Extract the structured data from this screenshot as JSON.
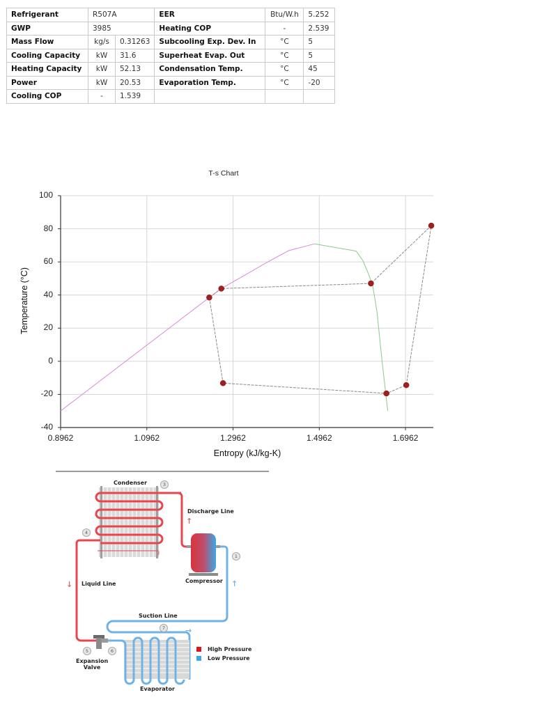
{
  "table": {
    "left_rows": [
      {
        "label": "Refrigerant",
        "unit": "",
        "value": "R507A",
        "span": true
      },
      {
        "label": "GWP",
        "unit": "",
        "value": "3985",
        "span": true
      },
      {
        "label": "Mass Flow",
        "unit": "kg/s",
        "value": "0.31263"
      },
      {
        "label": "Cooling Capacity",
        "unit": "kW",
        "value": "31.6"
      },
      {
        "label": "Heating Capacity",
        "unit": "kW",
        "value": "52.13"
      },
      {
        "label": "Power",
        "unit": "kW",
        "value": "20.53"
      },
      {
        "label": "Cooling COP",
        "unit": "-",
        "value": "1.539"
      }
    ],
    "right_rows": [
      {
        "label": "EER",
        "unit": "Btu/W.h",
        "value": "5.252"
      },
      {
        "label": "Heating COP",
        "unit": "-",
        "value": "2.539"
      },
      {
        "label": "Subcooling Exp. Dev. In",
        "unit": "°C",
        "value": "5"
      },
      {
        "label": "Superheat Evap. Out",
        "unit": "°C",
        "value": "5"
      },
      {
        "label": "Condensation Temp.",
        "unit": "°C",
        "value": "45"
      },
      {
        "label": "Evaporation Temp.",
        "unit": "°C",
        "value": "-20"
      },
      {
        "label": "",
        "unit": "",
        "value": ""
      }
    ]
  },
  "chart_data": {
    "type": "line",
    "title": "T-s Chart",
    "xlabel": "Entropy (kJ/kg-K)",
    "ylabel": "Temperature (°C)",
    "xlim": [
      0.8962,
      1.7607
    ],
    "ylim": [
      -40,
      100
    ],
    "xticks": [
      "0.8962",
      "1.0962",
      "1.2962",
      "1.4962",
      "1.6962"
    ],
    "yticks": [
      "100",
      "80",
      "60",
      "40",
      "20",
      "0",
      "-20",
      "-40"
    ],
    "grid": true,
    "legend": "none",
    "series": [
      {
        "name": "Saturated liquid line",
        "color": "#d98ad9",
        "x": [
          0.8962,
          1.241,
          1.269,
          1.33,
          1.38,
          1.425,
          1.485
        ],
        "y": [
          -30.0,
          38.5,
          43.9,
          53.0,
          60.5,
          66.8,
          70.9
        ]
      },
      {
        "name": "Saturated vapor line",
        "color": "#8cc98c",
        "x": [
          1.485,
          1.582,
          1.598,
          1.61,
          1.62,
          1.63,
          1.642,
          1.655
        ],
        "y": [
          70.9,
          66.5,
          60.5,
          53.0,
          46.0,
          30.0,
          0.0,
          -30.0
        ]
      },
      {
        "name": "Refrigeration cycle",
        "color": "#8a8a8a",
        "markers": true,
        "marker_color": "#a31f1f",
        "x": [
          1.241,
          1.273,
          1.652,
          1.698,
          1.756,
          1.616,
          1.269,
          1.241
        ],
        "y": [
          38.5,
          -13.2,
          -19.4,
          -14.4,
          81.9,
          47.0,
          43.9,
          38.5
        ]
      }
    ],
    "points": [
      {
        "s": 1.241,
        "T": 38.5
      },
      {
        "s": 1.269,
        "T": 43.9
      },
      {
        "s": 1.273,
        "T": -13.2
      },
      {
        "s": 1.652,
        "T": -19.4
      },
      {
        "s": 1.698,
        "T": -14.4
      },
      {
        "s": 1.756,
        "T": 81.9
      },
      {
        "s": 1.616,
        "T": 47.0
      }
    ]
  },
  "diagram": {
    "labels": {
      "condenser": "Condenser",
      "discharge_line": "Discharge Line",
      "compressor": "Compressor",
      "liquid_line": "Liquid Line",
      "suction_line": "Suction Line",
      "expansion_valve_1": "Expansion",
      "expansion_valve_2": "Valve",
      "evaporator": "Evaporator"
    },
    "badges": {
      "b1": "1",
      "b3": "3",
      "b4": "4",
      "b5": "5",
      "b6": "6",
      "b7": "7"
    },
    "legend": [
      {
        "label": "High Pressure",
        "color": "#e0141e"
      },
      {
        "label": "Low Pressure",
        "color": "#3aa7e8"
      }
    ],
    "colors": {
      "high": "#e8464e",
      "low": "#6fb3e6"
    }
  }
}
